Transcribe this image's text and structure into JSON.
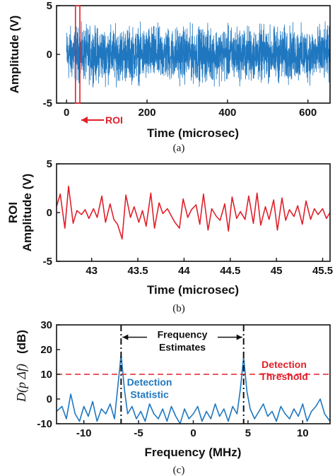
{
  "colors": {
    "signal": "#1f77c0",
    "roi": "#e0202a",
    "text": "#111111"
  },
  "chart_data": [
    {
      "panel": "a",
      "type": "line",
      "caption": "(a)",
      "xlabel": "Time (microsec)",
      "ylabel": "Amplitude (V)",
      "xlim": [
        -25,
        655
      ],
      "ylim": [
        -5,
        5
      ],
      "xticks": [
        0,
        200,
        400,
        600
      ],
      "yticks": [
        -5,
        0,
        5
      ],
      "series": [
        {
          "description": "noise-like signal spanning full record",
          "x_range": [
            0,
            655
          ],
          "amplitude_envelope": 3.4
        }
      ],
      "roi": {
        "x": [
          22,
          33
        ],
        "label": "ROI"
      }
    },
    {
      "panel": "b",
      "type": "line",
      "caption": "(b)",
      "xlabel": "Time (microsec)",
      "ylabel_lines": [
        "ROI",
        "Amplitude (V)"
      ],
      "xlim": [
        42.62,
        45.58
      ],
      "ylim": [
        -5,
        5
      ],
      "xticks": [
        43,
        43.5,
        44,
        44.5,
        45,
        45.5
      ],
      "xtick_labels": [
        "43",
        "43.5",
        "44",
        "44.5",
        "45",
        "45.5"
      ],
      "yticks": [
        -5,
        0,
        5
      ],
      "series": [
        {
          "x": [
            42.62,
            42.66,
            42.71,
            42.75,
            42.8,
            42.84,
            42.89,
            42.93,
            42.97,
            43.02,
            43.06,
            43.11,
            43.15,
            43.2,
            43.24,
            43.28,
            43.33,
            43.37,
            43.42,
            43.46,
            43.51,
            43.55,
            43.59,
            43.64,
            43.68,
            43.73,
            43.77,
            43.82,
            43.86,
            43.9,
            43.95,
            43.99,
            44.04,
            44.08,
            44.13,
            44.17,
            44.21,
            44.26,
            44.3,
            44.35,
            44.39,
            44.44,
            44.48,
            44.52,
            44.57,
            44.61,
            44.66,
            44.7,
            44.75,
            44.79,
            44.83,
            44.88,
            44.92,
            44.97,
            45.01,
            45.06,
            45.1,
            45.14,
            45.19,
            45.23,
            45.28,
            45.32,
            45.37,
            45.41,
            45.45,
            45.5,
            45.54,
            45.58
          ],
          "y": [
            0.6,
            1.9,
            -1.6,
            2.7,
            -1.1,
            0.2,
            -0.2,
            0.3,
            -0.6,
            0.4,
            -0.5,
            1.7,
            -1.0,
            0.9,
            -0.7,
            -1.2,
            -2.7,
            1.8,
            -0.5,
            0.6,
            -1.0,
            0.2,
            -1.4,
            2.0,
            -1.6,
            1.0,
            -0.1,
            0.4,
            -0.3,
            -1.0,
            -1.6,
            1.4,
            -0.5,
            0.3,
            0.8,
            -1.2,
            1.9,
            -1.8,
            0.4,
            -0.4,
            -0.8,
            0.9,
            -1.9,
            1.6,
            -0.6,
            0.1,
            -0.7,
            1.7,
            -1.1,
            2.0,
            -1.3,
            0.6,
            -0.7,
            1.3,
            -1.8,
            1.5,
            -0.8,
            0.3,
            -0.4,
            0.7,
            -1.2,
            1.2,
            -0.7,
            0.4,
            -0.2,
            0.4,
            -0.6,
            0.0
          ]
        }
      ]
    },
    {
      "panel": "c",
      "type": "line",
      "caption": "(c)",
      "xlabel": "Frequency (MHz)",
      "ylabel_math": "D(p Δf)",
      "ylabel_unit": "(dB)",
      "xlim": [
        -12.5,
        12.5
      ],
      "ylim": [
        -10,
        30
      ],
      "xticks": [
        -10,
        -5,
        0,
        5,
        10
      ],
      "yticks": [
        -10,
        0,
        10,
        20,
        30
      ],
      "threshold": {
        "y": 10,
        "label_lines": [
          "Detection",
          "Threshold"
        ]
      },
      "estimates": {
        "x": [
          -6.6,
          4.6
        ],
        "label_lines": [
          "Frequency",
          "Estimates"
        ]
      },
      "statistic_label_lines": [
        "Detection",
        "Statistic"
      ],
      "series": [
        {
          "name": "Detection Statistic",
          "x": [
            -12.5,
            -12.0,
            -11.6,
            -11.2,
            -10.8,
            -10.4,
            -10.0,
            -9.6,
            -9.2,
            -8.8,
            -8.4,
            -8.0,
            -7.6,
            -7.2,
            -6.9,
            -6.6,
            -6.3,
            -6.0,
            -5.6,
            -5.2,
            -4.8,
            -4.4,
            -4.0,
            -3.6,
            -3.2,
            -2.8,
            -2.4,
            -2.0,
            -1.6,
            -1.2,
            -0.8,
            -0.4,
            0.0,
            0.4,
            0.8,
            1.2,
            1.6,
            2.0,
            2.4,
            2.8,
            3.2,
            3.6,
            4.0,
            4.3,
            4.6,
            4.9,
            5.2,
            5.6,
            6.0,
            6.4,
            6.8,
            7.2,
            7.6,
            8.0,
            8.4,
            8.8,
            9.2,
            9.6,
            10.0,
            10.4,
            10.8,
            11.2,
            11.6,
            12.0,
            12.5
          ],
          "y": [
            -5,
            -3,
            -8,
            2,
            -6,
            -9,
            -3,
            -7,
            -1,
            -9,
            -4,
            -6,
            -2,
            -8,
            5,
            18,
            4,
            -6,
            -3,
            -8,
            -5,
            -9,
            -2,
            -6,
            -8,
            -4,
            -9,
            -3,
            -7,
            -10,
            -4,
            -8,
            -6,
            -3,
            -9,
            -5,
            -8,
            -2,
            -7,
            -4,
            -9,
            -3,
            -6,
            4,
            17,
            3,
            -4,
            -8,
            -5,
            -2,
            -7,
            -5,
            -9,
            -3,
            -6,
            -8,
            -4,
            -7,
            -2,
            -9,
            -5,
            -3,
            0,
            -6,
            -9
          ]
        }
      ]
    }
  ]
}
